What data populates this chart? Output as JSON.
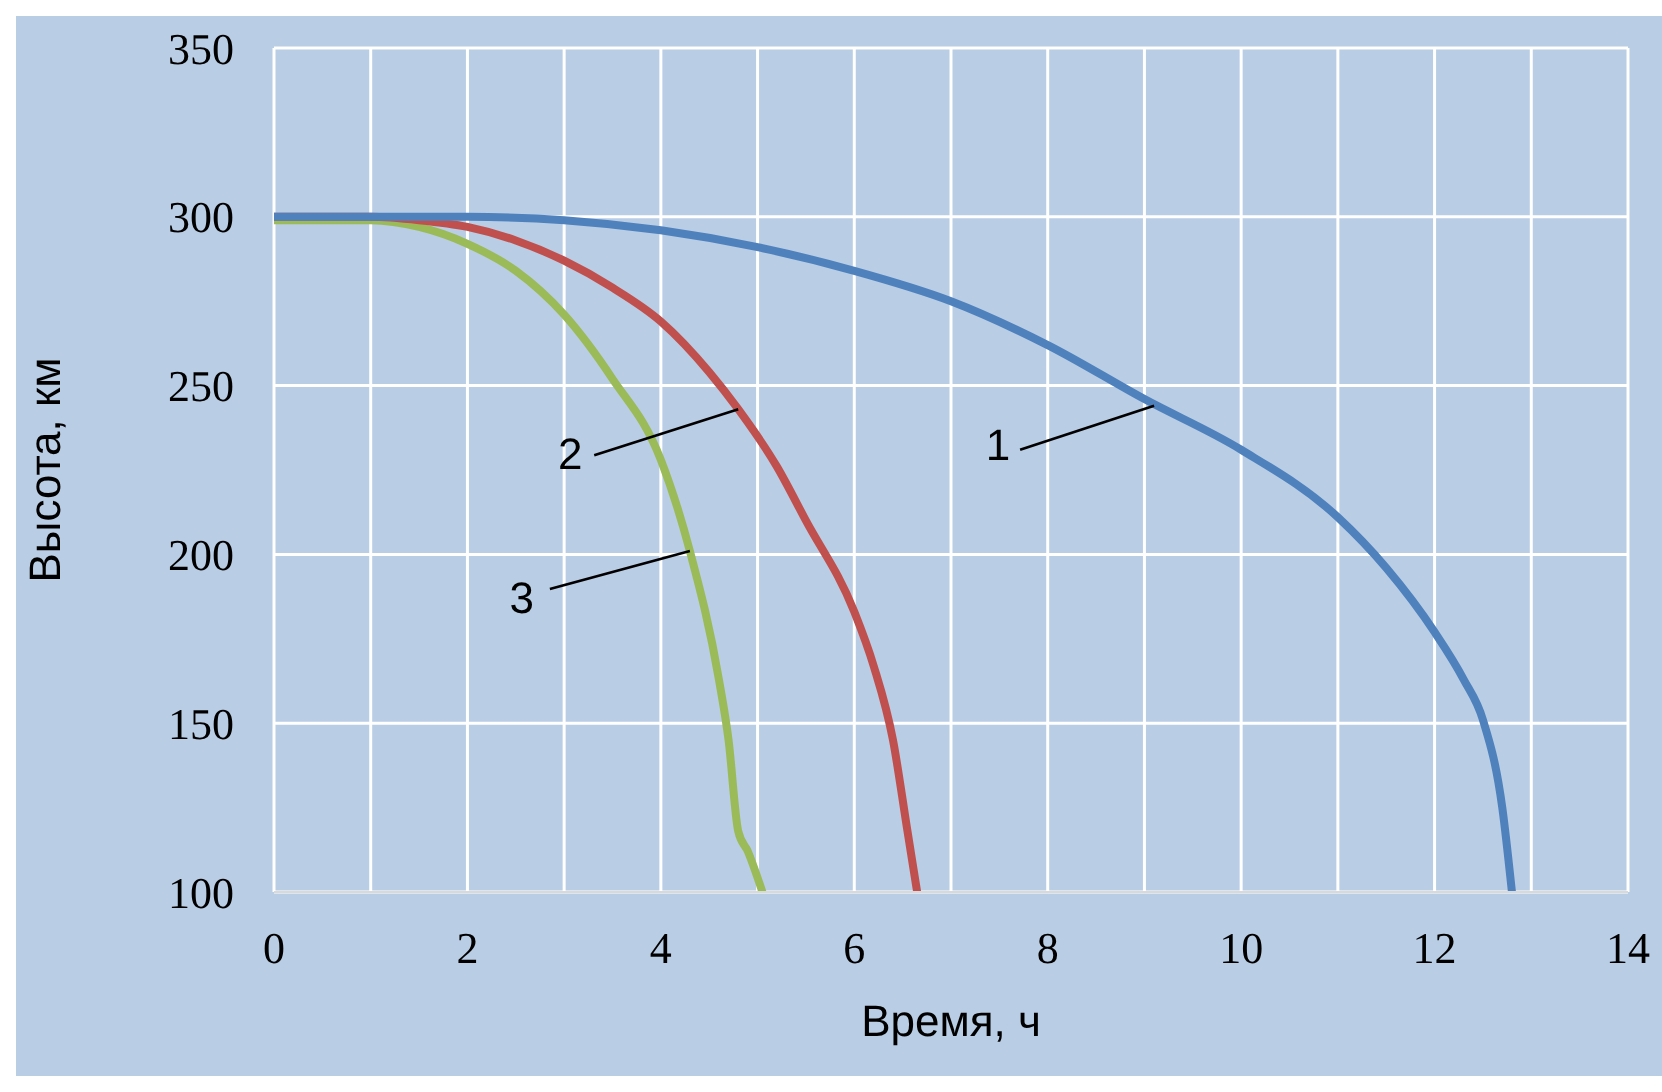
{
  "chart_data": {
    "type": "line",
    "xlabel": "Время, ч",
    "ylabel": "Высота, км",
    "xlim": [
      0,
      14
    ],
    "xticks": [
      0,
      {
        "value": 1,
        "label": null
      },
      2,
      {
        "value": 3,
        "label": null
      },
      4,
      {
        "value": 5,
        "label": null
      },
      6,
      {
        "value": 7,
        "label": null
      },
      8,
      {
        "value": 9,
        "label": null
      },
      10,
      {
        "value": 11,
        "label": null
      },
      12,
      {
        "value": 13,
        "label": null
      },
      14
    ],
    "ylim": [
      100,
      350
    ],
    "yticks": [
      100,
      150,
      200,
      250,
      300,
      350
    ],
    "grid": true,
    "marker": "none",
    "line_style": "solid",
    "legend": false,
    "series": [
      {
        "color": "#4f81bd",
        "x": [
          0,
          1,
          2,
          3,
          4,
          5,
          6,
          7,
          8,
          9,
          10,
          11,
          11.5,
          12,
          12.3,
          12.5,
          12.7,
          12.8
        ],
        "values": [
          300,
          300,
          300,
          299,
          296,
          291,
          284,
          275,
          262,
          246,
          231,
          211,
          196,
          177,
          163,
          151,
          125,
          100
        ]
      },
      {
        "color": "#c0504d",
        "x": [
          0,
          1,
          1.5,
          2,
          2.5,
          3,
          3.5,
          4,
          4.5,
          4.8,
          5.2,
          5.5,
          6,
          6.2,
          6.4,
          6.55,
          6.65
        ],
        "values": [
          300,
          300,
          299,
          297,
          293,
          287,
          279,
          269,
          254,
          243,
          226,
          210,
          183,
          167,
          145,
          118,
          100
        ]
      },
      {
        "color": "#9bbb59",
        "x": [
          0,
          1,
          1.5,
          2,
          2.5,
          3,
          3.5,
          4,
          4.3,
          4.6,
          4.7,
          4.8,
          4.9,
          5.05
        ],
        "values": [
          299,
          299,
          297,
          292,
          284,
          271,
          252,
          228,
          201,
          163,
          145,
          118,
          112,
          100
        ]
      }
    ],
    "annotations": [
      {
        "text": "1",
        "x": 9.1,
        "y": 244
      },
      {
        "text": "2",
        "x": 4.8,
        "y": 243
      },
      {
        "text": "3",
        "x": 4.3,
        "y": 201
      }
    ]
  }
}
